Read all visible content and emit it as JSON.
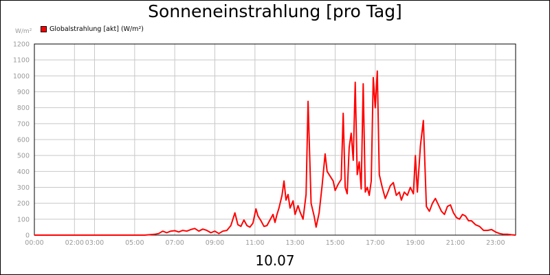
{
  "chart_data": {
    "type": "line",
    "title": "Sonneneinstrahlung [pro Tag]",
    "ylabel": "W/m²",
    "xlabel": "10.07",
    "ylim": [
      0,
      1200
    ],
    "yticks": [
      0,
      100,
      200,
      300,
      400,
      500,
      600,
      700,
      800,
      900,
      1000,
      1100,
      1200
    ],
    "xlim": [
      0,
      24
    ],
    "xticks": [
      {
        "x": 0,
        "label": "00:00"
      },
      {
        "x": 2,
        "label": "02:00"
      },
      {
        "x": 3,
        "label": "03:00"
      },
      {
        "x": 5,
        "label": "05:00"
      },
      {
        "x": 7,
        "label": "07:00"
      },
      {
        "x": 9,
        "label": "09:00"
      },
      {
        "x": 11,
        "label": "11:00"
      },
      {
        "x": 13,
        "label": "13:00"
      },
      {
        "x": 15,
        "label": "15:00"
      },
      {
        "x": 17,
        "label": "17:00"
      },
      {
        "x": 19,
        "label": "19:00"
      },
      {
        "x": 21,
        "label": "21:00"
      },
      {
        "x": 23,
        "label": "23:00"
      }
    ],
    "grid": true,
    "legend_placement": "top-left",
    "series": [
      {
        "name": "Globalstrahlung [akt] (W/m²)",
        "color": "#ff0000",
        "points": [
          [
            0.0,
            0
          ],
          [
            5.5,
            0
          ],
          [
            5.8,
            3
          ],
          [
            6.0,
            5
          ],
          [
            6.2,
            10
          ],
          [
            6.4,
            25
          ],
          [
            6.6,
            15
          ],
          [
            6.8,
            25
          ],
          [
            7.0,
            28
          ],
          [
            7.2,
            20
          ],
          [
            7.4,
            30
          ],
          [
            7.6,
            25
          ],
          [
            7.8,
            35
          ],
          [
            8.0,
            42
          ],
          [
            8.2,
            25
          ],
          [
            8.4,
            38
          ],
          [
            8.6,
            30
          ],
          [
            8.8,
            15
          ],
          [
            9.0,
            25
          ],
          [
            9.2,
            10
          ],
          [
            9.4,
            25
          ],
          [
            9.6,
            30
          ],
          [
            9.8,
            60
          ],
          [
            10.0,
            140
          ],
          [
            10.15,
            65
          ],
          [
            10.3,
            55
          ],
          [
            10.45,
            95
          ],
          [
            10.6,
            60
          ],
          [
            10.75,
            50
          ],
          [
            10.9,
            75
          ],
          [
            11.05,
            165
          ],
          [
            11.15,
            120
          ],
          [
            11.3,
            90
          ],
          [
            11.45,
            55
          ],
          [
            11.6,
            60
          ],
          [
            11.75,
            95
          ],
          [
            11.9,
            130
          ],
          [
            12.0,
            80
          ],
          [
            12.1,
            130
          ],
          [
            12.2,
            170
          ],
          [
            12.35,
            250
          ],
          [
            12.45,
            340
          ],
          [
            12.55,
            220
          ],
          [
            12.65,
            255
          ],
          [
            12.75,
            170
          ],
          [
            12.9,
            215
          ],
          [
            13.0,
            130
          ],
          [
            13.15,
            185
          ],
          [
            13.25,
            145
          ],
          [
            13.4,
            100
          ],
          [
            13.55,
            255
          ],
          [
            13.65,
            840
          ],
          [
            13.8,
            200
          ],
          [
            13.95,
            120
          ],
          [
            14.05,
            50
          ],
          [
            14.2,
            140
          ],
          [
            14.35,
            310
          ],
          [
            14.5,
            510
          ],
          [
            14.6,
            400
          ],
          [
            14.75,
            370
          ],
          [
            14.9,
            340
          ],
          [
            15.0,
            280
          ],
          [
            15.15,
            320
          ],
          [
            15.3,
            350
          ],
          [
            15.4,
            765
          ],
          [
            15.5,
            300
          ],
          [
            15.6,
            260
          ],
          [
            15.7,
            550
          ],
          [
            15.8,
            640
          ],
          [
            15.9,
            470
          ],
          [
            16.0,
            960
          ],
          [
            16.1,
            380
          ],
          [
            16.2,
            460
          ],
          [
            16.3,
            290
          ],
          [
            16.4,
            950
          ],
          [
            16.5,
            270
          ],
          [
            16.6,
            300
          ],
          [
            16.7,
            250
          ],
          [
            16.8,
            340
          ],
          [
            16.9,
            990
          ],
          [
            17.0,
            800
          ],
          [
            17.1,
            1030
          ],
          [
            17.2,
            380
          ],
          [
            17.35,
            300
          ],
          [
            17.5,
            230
          ],
          [
            17.6,
            260
          ],
          [
            17.75,
            310
          ],
          [
            17.9,
            330
          ],
          [
            18.05,
            250
          ],
          [
            18.2,
            270
          ],
          [
            18.3,
            220
          ],
          [
            18.45,
            270
          ],
          [
            18.6,
            250
          ],
          [
            18.75,
            300
          ],
          [
            18.9,
            260
          ],
          [
            19.0,
            500
          ],
          [
            19.1,
            270
          ],
          [
            19.25,
            560
          ],
          [
            19.4,
            720
          ],
          [
            19.55,
            180
          ],
          [
            19.7,
            150
          ],
          [
            19.85,
            200
          ],
          [
            20.0,
            230
          ],
          [
            20.15,
            190
          ],
          [
            20.3,
            150
          ],
          [
            20.45,
            130
          ],
          [
            20.6,
            180
          ],
          [
            20.75,
            190
          ],
          [
            20.9,
            140
          ],
          [
            21.05,
            110
          ],
          [
            21.2,
            100
          ],
          [
            21.35,
            130
          ],
          [
            21.5,
            120
          ],
          [
            21.65,
            90
          ],
          [
            21.8,
            90
          ],
          [
            22.0,
            65
          ],
          [
            22.2,
            55
          ],
          [
            22.4,
            30
          ],
          [
            22.6,
            30
          ],
          [
            22.8,
            35
          ],
          [
            23.0,
            20
          ],
          [
            23.2,
            10
          ],
          [
            23.4,
            5
          ],
          [
            23.6,
            5
          ],
          [
            23.8,
            2
          ],
          [
            24.0,
            0
          ]
        ]
      }
    ]
  }
}
